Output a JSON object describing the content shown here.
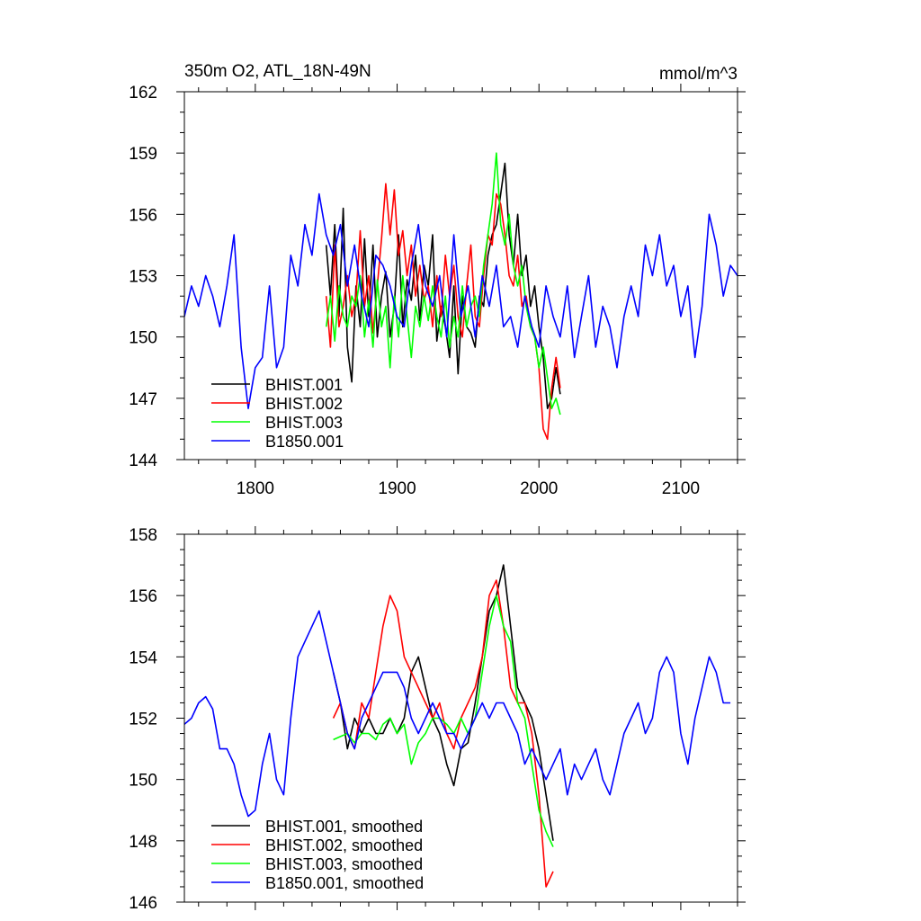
{
  "chart_data": [
    {
      "type": "line",
      "title": "350m O2, ATL_18N-49N",
      "units": "mmol/m^3",
      "xlim": [
        1750,
        2140
      ],
      "ylim": [
        144,
        162
      ],
      "xticks": [
        1800,
        1900,
        2000,
        2100
      ],
      "yticks": [
        144,
        147,
        150,
        153,
        156,
        159,
        162
      ],
      "legend": "bottom-left",
      "series": [
        {
          "name": "BHIST.001",
          "color": "#000000",
          "x": [
            1850,
            1853,
            1856,
            1859,
            1862,
            1865,
            1868,
            1871,
            1874,
            1877,
            1880,
            1883,
            1886,
            1889,
            1892,
            1895,
            1898,
            1901,
            1904,
            1907,
            1910,
            1913,
            1916,
            1919,
            1922,
            1925,
            1928,
            1931,
            1934,
            1937,
            1940,
            1943,
            1946,
            1949,
            1952,
            1955,
            1958,
            1961,
            1964,
            1967,
            1970,
            1973,
            1976,
            1979,
            1982,
            1985,
            1988,
            1991,
            1994,
            1997,
            2000,
            2003,
            2006,
            2009,
            2012,
            2015
          ],
          "y": [
            154.5,
            152.0,
            155.5,
            151.0,
            156.3,
            149.5,
            147.8,
            152.5,
            150.5,
            154.8,
            151.0,
            154.5,
            150.0,
            152.0,
            153.2,
            150.0,
            151.5,
            155.0,
            150.5,
            152.8,
            151.8,
            154.0,
            150.8,
            153.5,
            152.5,
            155.0,
            149.8,
            151.5,
            150.5,
            149.0,
            152.5,
            148.2,
            152.0,
            150.5,
            150.2,
            149.5,
            152.0,
            151.5,
            154.0,
            155.0,
            155.5,
            157.0,
            158.5,
            155.0,
            153.5,
            156.0,
            153.0,
            154.0,
            151.5,
            152.5,
            150.5,
            149.0,
            146.5,
            147.0,
            148.5,
            147.2
          ]
        },
        {
          "name": "BHIST.002",
          "color": "#ff0000",
          "x": [
            1850,
            1853,
            1856,
            1859,
            1862,
            1865,
            1868,
            1871,
            1874,
            1877,
            1880,
            1883,
            1886,
            1889,
            1892,
            1895,
            1898,
            1901,
            1904,
            1907,
            1910,
            1913,
            1916,
            1919,
            1922,
            1925,
            1928,
            1931,
            1934,
            1937,
            1940,
            1943,
            1946,
            1949,
            1952,
            1955,
            1958,
            1961,
            1964,
            1967,
            1970,
            1973,
            1976,
            1979,
            1982,
            1985,
            1988,
            1991,
            1994,
            1997,
            2000,
            2003,
            2006,
            2009,
            2012,
            2015
          ],
          "y": [
            152.0,
            149.5,
            154.5,
            150.5,
            151.5,
            153.0,
            151.0,
            152.0,
            155.2,
            151.5,
            153.0,
            150.2,
            152.5,
            154.8,
            157.5,
            155.0,
            157.2,
            154.0,
            155.2,
            153.0,
            154.5,
            152.0,
            153.5,
            151.8,
            152.5,
            150.5,
            153.0,
            151.0,
            154.0,
            152.0,
            153.5,
            151.0,
            150.0,
            152.5,
            154.5,
            151.0,
            150.5,
            153.0,
            155.0,
            154.5,
            157.0,
            156.5,
            155.0,
            153.0,
            152.5,
            154.0,
            151.5,
            152.0,
            150.5,
            150.0,
            148.5,
            145.5,
            145.0,
            147.5,
            149.0,
            147.5
          ]
        },
        {
          "name": "BHIST.003",
          "color": "#00ff00",
          "x": [
            1850,
            1853,
            1856,
            1859,
            1862,
            1865,
            1868,
            1871,
            1874,
            1877,
            1880,
            1883,
            1886,
            1889,
            1892,
            1895,
            1898,
            1901,
            1904,
            1907,
            1910,
            1913,
            1916,
            1919,
            1922,
            1925,
            1928,
            1931,
            1934,
            1937,
            1940,
            1943,
            1946,
            1949,
            1952,
            1955,
            1958,
            1961,
            1964,
            1967,
            1970,
            1973,
            1976,
            1979,
            1982,
            1985,
            1988,
            1991,
            1994,
            1997,
            2000,
            2003,
            2006,
            2009,
            2012,
            2015
          ],
          "y": [
            150.5,
            152.0,
            149.8,
            152.5,
            151.0,
            150.5,
            152.0,
            151.5,
            153.0,
            150.0,
            151.8,
            149.5,
            152.8,
            150.5,
            151.5,
            148.5,
            152.0,
            150.0,
            153.0,
            151.0,
            149.0,
            151.5,
            150.5,
            152.0,
            150.8,
            152.5,
            151.0,
            150.0,
            152.0,
            149.5,
            151.0,
            150.0,
            152.5,
            150.5,
            151.5,
            152.0,
            151.0,
            153.5,
            155.0,
            156.5,
            159.0,
            155.5,
            154.5,
            156.0,
            153.5,
            152.5,
            153.5,
            151.5,
            150.5,
            150.0,
            148.5,
            149.5,
            148.0,
            146.5,
            147.0,
            146.2
          ]
        },
        {
          "name": "B1850.001",
          "color": "#0000ff",
          "x": [
            1750,
            1755,
            1760,
            1765,
            1770,
            1775,
            1780,
            1785,
            1790,
            1795,
            1800,
            1805,
            1810,
            1815,
            1820,
            1825,
            1830,
            1835,
            1840,
            1845,
            1850,
            1855,
            1860,
            1865,
            1870,
            1875,
            1880,
            1885,
            1890,
            1895,
            1900,
            1905,
            1910,
            1915,
            1920,
            1925,
            1930,
            1935,
            1940,
            1945,
            1950,
            1955,
            1960,
            1965,
            1970,
            1975,
            1980,
            1985,
            1990,
            1995,
            2000,
            2005,
            2010,
            2015,
            2020,
            2025,
            2030,
            2035,
            2040,
            2045,
            2050,
            2055,
            2060,
            2065,
            2070,
            2075,
            2080,
            2085,
            2090,
            2095,
            2100,
            2105,
            2110,
            2115,
            2120,
            2125,
            2130,
            2135,
            2140
          ],
          "y": [
            151.0,
            152.5,
            151.5,
            153.0,
            152.0,
            150.5,
            152.5,
            155.0,
            149.5,
            146.5,
            148.5,
            149.0,
            152.5,
            148.5,
            149.5,
            154.0,
            152.5,
            155.5,
            154.0,
            157.0,
            155.0,
            154.0,
            155.5,
            152.5,
            154.5,
            152.0,
            150.5,
            154.0,
            153.5,
            152.5,
            151.0,
            150.5,
            153.5,
            155.5,
            152.5,
            151.5,
            153.0,
            150.0,
            155.0,
            151.0,
            152.5,
            150.0,
            153.0,
            151.5,
            153.5,
            150.5,
            151.0,
            149.5,
            152.0,
            150.5,
            149.5,
            152.5,
            151.0,
            150.0,
            152.5,
            149.0,
            151.0,
            153.0,
            149.5,
            151.5,
            150.5,
            148.5,
            151.0,
            152.5,
            151.0,
            154.5,
            153.0,
            155.0,
            152.5,
            153.5,
            151.0,
            152.5,
            149.0,
            151.5,
            156.0,
            154.5,
            152.0,
            153.5,
            153.0
          ]
        }
      ],
      "legend_entries": [
        "BHIST.001",
        "BHIST.002",
        "BHIST.003",
        "B1850.001"
      ]
    },
    {
      "type": "line",
      "title": "",
      "xlim": [
        1750,
        2140
      ],
      "ylim": [
        146,
        158
      ],
      "xticks": [
        1800,
        1900,
        2000,
        2100
      ],
      "yticks": [
        146,
        148,
        150,
        152,
        154,
        156,
        158
      ],
      "legend": "bottom-left",
      "series": [
        {
          "name": "BHIST.001, smoothed",
          "color": "#000000",
          "x": [
            1855,
            1860,
            1865,
            1870,
            1875,
            1880,
            1885,
            1890,
            1895,
            1900,
            1905,
            1910,
            1915,
            1920,
            1925,
            1930,
            1935,
            1940,
            1945,
            1950,
            1955,
            1960,
            1965,
            1970,
            1975,
            1980,
            1985,
            1990,
            1995,
            2000,
            2005,
            2010
          ],
          "y": [
            153.5,
            152.5,
            151.0,
            152.0,
            151.5,
            152.0,
            151.5,
            151.5,
            152.0,
            151.5,
            152.0,
            153.5,
            154.0,
            153.0,
            152.0,
            151.5,
            150.5,
            149.8,
            151.0,
            151.2,
            152.5,
            154.0,
            155.5,
            156.0,
            157.0,
            155.0,
            153.0,
            152.5,
            152.0,
            151.0,
            149.5,
            148.0
          ]
        },
        {
          "name": "BHIST.002, smoothed",
          "color": "#ff0000",
          "x": [
            1855,
            1860,
            1865,
            1870,
            1875,
            1880,
            1885,
            1890,
            1895,
            1900,
            1905,
            1910,
            1915,
            1920,
            1925,
            1930,
            1935,
            1940,
            1945,
            1950,
            1955,
            1960,
            1965,
            1970,
            1975,
            1980,
            1985,
            1990,
            1995,
            2000,
            2005,
            2010
          ],
          "y": [
            152.0,
            152.5,
            151.5,
            151.0,
            152.5,
            152.0,
            153.5,
            155.0,
            156.0,
            155.5,
            154.0,
            153.5,
            153.0,
            152.5,
            152.0,
            152.5,
            151.5,
            151.0,
            152.0,
            152.5,
            153.0,
            154.0,
            156.0,
            156.5,
            155.0,
            153.0,
            152.5,
            152.5,
            151.5,
            149.5,
            146.5,
            147.0
          ]
        },
        {
          "name": "BHIST.003, smoothed",
          "color": "#00ff00",
          "x": [
            1855,
            1860,
            1865,
            1870,
            1875,
            1880,
            1885,
            1890,
            1895,
            1900,
            1905,
            1910,
            1915,
            1920,
            1925,
            1930,
            1935,
            1940,
            1945,
            1950,
            1955,
            1960,
            1965,
            1970,
            1975,
            1980,
            1985,
            1990,
            1995,
            2000,
            2005,
            2010
          ],
          "y": [
            151.3,
            151.4,
            151.5,
            151.2,
            151.5,
            151.5,
            151.3,
            151.8,
            152.0,
            151.5,
            151.8,
            150.5,
            151.2,
            151.5,
            152.0,
            152.0,
            151.8,
            151.5,
            152.0,
            151.5,
            152.0,
            153.5,
            155.0,
            156.0,
            155.0,
            154.5,
            152.5,
            152.0,
            150.5,
            149.0,
            148.3,
            147.8
          ]
        },
        {
          "name": "B1850.001, smoothed",
          "color": "#0000ff",
          "x": [
            1750,
            1755,
            1760,
            1765,
            1770,
            1775,
            1780,
            1785,
            1790,
            1795,
            1800,
            1805,
            1810,
            1815,
            1820,
            1825,
            1830,
            1835,
            1840,
            1845,
            1850,
            1855,
            1860,
            1865,
            1870,
            1875,
            1880,
            1885,
            1890,
            1895,
            1900,
            1905,
            1910,
            1915,
            1920,
            1925,
            1930,
            1935,
            1940,
            1945,
            1950,
            1955,
            1960,
            1965,
            1970,
            1975,
            1980,
            1985,
            1990,
            1995,
            2000,
            2005,
            2010,
            2015,
            2020,
            2025,
            2030,
            2035,
            2040,
            2045,
            2050,
            2055,
            2060,
            2065,
            2070,
            2075,
            2080,
            2085,
            2090,
            2095,
            2100,
            2105,
            2110,
            2115,
            2120,
            2125,
            2130,
            2135
          ],
          "y": [
            151.8,
            152.0,
            152.5,
            152.7,
            152.3,
            151.0,
            151.0,
            150.5,
            149.5,
            148.8,
            149.0,
            150.5,
            151.5,
            150.0,
            149.5,
            152.0,
            154.0,
            154.5,
            155.0,
            155.5,
            154.5,
            153.5,
            152.5,
            151.5,
            151.0,
            152.0,
            152.5,
            153.0,
            153.5,
            153.5,
            153.5,
            153.0,
            152.0,
            151.5,
            152.0,
            152.5,
            152.0,
            151.5,
            151.5,
            151.0,
            151.5,
            152.0,
            152.5,
            152.0,
            152.5,
            152.5,
            152.0,
            151.5,
            150.5,
            151.0,
            150.5,
            150.0,
            150.5,
            151.0,
            149.5,
            150.5,
            150.0,
            150.5,
            151.0,
            150.0,
            149.5,
            150.5,
            151.5,
            152.0,
            152.5,
            151.5,
            152.0,
            153.5,
            154.0,
            153.5,
            151.5,
            150.5,
            152.0,
            153.0,
            154.0,
            153.5,
            152.5,
            152.5
          ]
        }
      ],
      "legend_entries": [
        "BHIST.001, smoothed",
        "BHIST.002, smoothed",
        "BHIST.003, smoothed",
        "B1850.001, smoothed"
      ]
    }
  ]
}
